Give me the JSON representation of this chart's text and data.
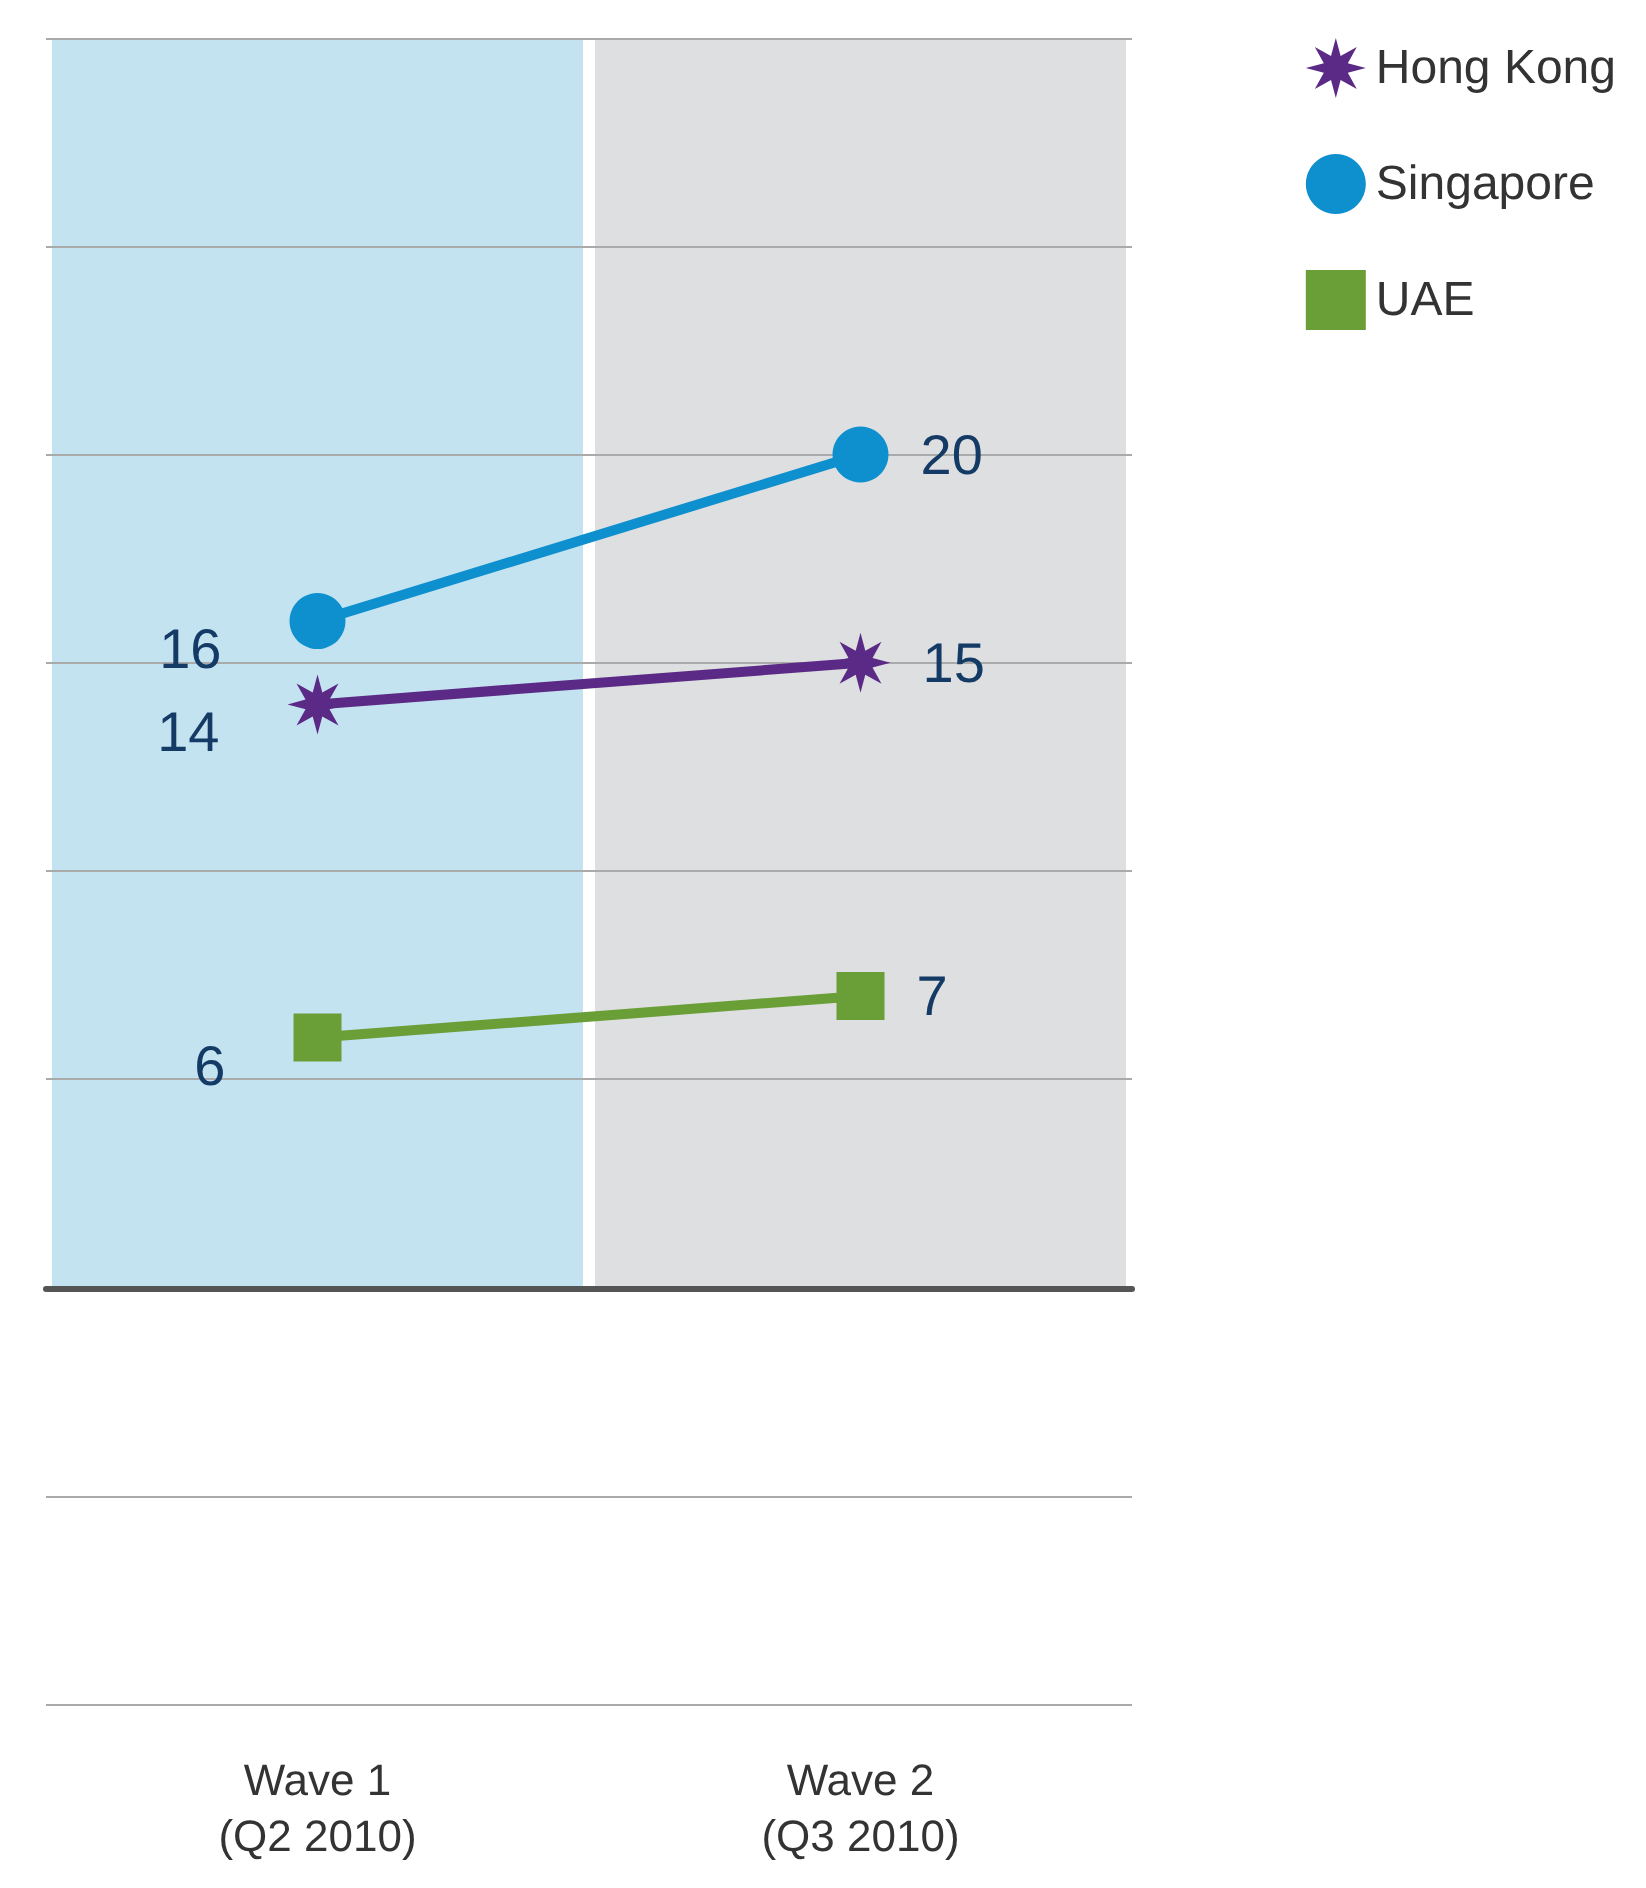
{
  "chart_data": {
    "type": "line",
    "categories": [
      "Wave 1\n(Q2 2010)",
      "Wave 2\n(Q3 2010)"
    ],
    "series": [
      {
        "name": "Hong Kong",
        "color": "#5b2a86",
        "values": [
          14,
          15
        ],
        "marker": "star"
      },
      {
        "name": "Singapore",
        "color": "#0e8fce",
        "values": [
          16,
          20
        ],
        "marker": "circle"
      },
      {
        "name": "UAE",
        "color": "#6a9e37",
        "values": [
          6,
          7
        ],
        "marker": "square"
      }
    ],
    "ylim": [
      -10,
      30
    ],
    "yticks": [
      {
        "value": -10,
        "label": null
      },
      {
        "value": -5,
        "label": null
      },
      {
        "value": 0,
        "label": null
      },
      {
        "value": 5,
        "label": null
      },
      {
        "value": 10,
        "label": null
      },
      {
        "value": 15,
        "label": null
      },
      {
        "value": 20,
        "label": null
      },
      {
        "value": 25,
        "label": null
      },
      {
        "value": 30,
        "label": null
      }
    ],
    "tick_labels": "x",
    "grid": "y",
    "legend": "top right",
    "data_labels": true,
    "line_style": "solid",
    "bands": [
      {
        "axis": "x",
        "from": "Wave 1\n(Q2 2010)",
        "to": "Wave 1\n(Q2 2010)",
        "color": "#c4e3f1"
      },
      {
        "axis": "x",
        "from": "Wave 2\n(Q3 2010)",
        "to": "Wave 2\n(Q3 2010)",
        "color": "#dedfe0"
      }
    ]
  }
}
